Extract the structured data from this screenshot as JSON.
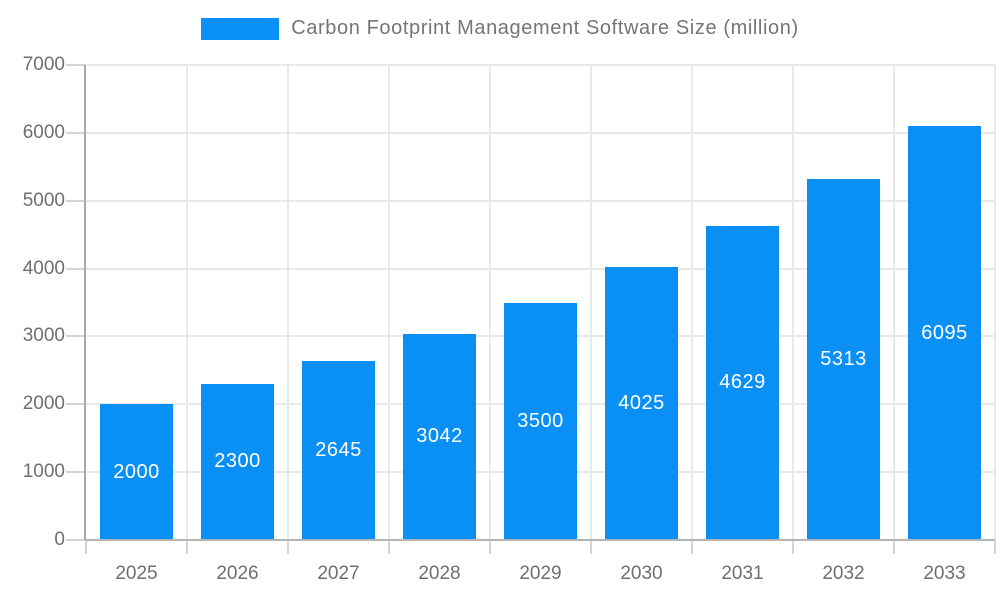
{
  "legend": {
    "label": "Carbon Footprint Management Software Size (million)"
  },
  "colors": {
    "bar": "#0a8ff5",
    "bar_label": "#ffffff",
    "grid": "#e9e9e9",
    "y_axis_line": "#a8a8a8",
    "x_axis_line": "#b4b4b4",
    "tick": "#d4d4d4",
    "axis_text": "#6f6f6f",
    "legend_text": "#757575",
    "background": "#ffffff"
  },
  "chart_data": {
    "type": "bar",
    "title": "Carbon Footprint Management Software Size (million)",
    "series_name": "Carbon Footprint Management Software Size (million)",
    "categories": [
      "2025",
      "2026",
      "2027",
      "2028",
      "2029",
      "2030",
      "2031",
      "2032",
      "2033"
    ],
    "values": [
      2000,
      2300,
      2645,
      3042,
      3500,
      4025,
      4629,
      5313,
      6095
    ],
    "bar_labels": [
      "2000",
      "2300",
      "2645",
      "3042",
      "3500",
      "4025",
      "4629",
      "5313",
      "6095"
    ],
    "xlabel": "",
    "ylabel": "",
    "ylim": [
      0,
      7000
    ],
    "yticks": [
      0,
      1000,
      2000,
      3000,
      4000,
      5000,
      6000,
      7000
    ],
    "ytick_labels": [
      "0",
      "1000",
      "2000",
      "3000",
      "4000",
      "5000",
      "6000",
      "7000"
    ],
    "grid": true,
    "legend_position": "top",
    "bar_labels_visible": true,
    "bar_label_position": "center-inside"
  }
}
